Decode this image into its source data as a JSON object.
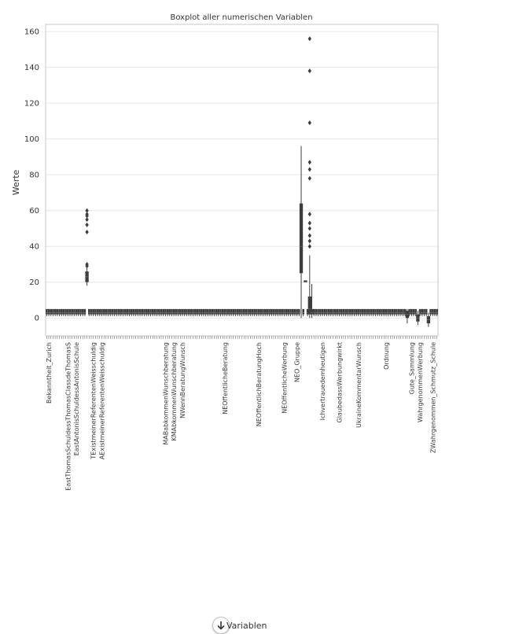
{
  "chart_data": {
    "type": "boxplot",
    "title": "Boxplot aller numerischen Variablen",
    "ylabel": "Werte",
    "xlabel": "Variablen",
    "ylim": [
      -10,
      164
    ],
    "yticks": [
      0,
      20,
      40,
      60,
      80,
      100,
      120,
      140,
      160
    ],
    "grid": true,
    "box_color": "#3d3d3d",
    "n_variables": 185,
    "typical_distribution": {
      "q1": 2,
      "median": 3,
      "q3": 5,
      "whisker_low": 1,
      "whisker_high": 5
    },
    "series": [
      {
        "index": 19,
        "q1": 20,
        "median": 23,
        "q3": 26,
        "whisker_low": 18,
        "whisker_high": 29,
        "outliers": [
          29,
          30,
          48,
          52,
          55,
          57,
          58,
          60
        ]
      },
      {
        "index": 120,
        "q1": 25,
        "median": 40,
        "q3": 64,
        "whisker_low": 0,
        "whisker_high": 96,
        "outliers": []
      },
      {
        "index": 122,
        "q1": 20,
        "median": 20,
        "q3": 21,
        "whisker_low": 20,
        "whisker_high": 21,
        "outliers": []
      },
      {
        "index": 124,
        "q1": 2,
        "median": 5,
        "q3": 12,
        "whisker_low": 0,
        "whisker_high": 35,
        "outliers": [
          40,
          43,
          46,
          50,
          53,
          58,
          78,
          83,
          87,
          109,
          138,
          156
        ]
      },
      {
        "index": 125,
        "q1": 2,
        "median": 3,
        "q3": 5,
        "whisker_low": 0,
        "whisker_high": 19,
        "outliers": []
      },
      {
        "index": 170,
        "q1": 0,
        "median": 2,
        "q3": 4,
        "whisker_low": -3,
        "whisker_high": 5,
        "outliers": []
      },
      {
        "index": 175,
        "q1": -2,
        "median": 0,
        "q3": 2,
        "whisker_low": -4,
        "whisker_high": 4,
        "outliers": []
      },
      {
        "index": 180,
        "q1": -3,
        "median": -1,
        "q3": 1,
        "whisker_low": -5,
        "whisker_high": 3,
        "outliers": []
      }
    ],
    "visible_tick_labels": [
      {
        "index": 1,
        "text": "Bekanntheit_Zurich"
      },
      {
        "index": 10,
        "text": "EastThomasSchuldessThomasClassdeThomasS"
      },
      {
        "index": 14,
        "text": "EastAntonisSchuldessAntonisSchule"
      },
      {
        "index": 22,
        "text": "TExistmeinerReferentenWeisschuldig"
      },
      {
        "index": 26,
        "text": "AExistmeinerReferentenWeisschuldig"
      },
      {
        "index": 56,
        "text": "MABabkommenWunschberatung"
      },
      {
        "index": 60,
        "text": "KMAbkommenWunschberatung"
      },
      {
        "index": 64,
        "text": "NWennBeratungWunsch"
      },
      {
        "index": 84,
        "text": "NEOffentlicheBeratung"
      },
      {
        "index": 100,
        "text": "NEOffentlichBeratungHoch"
      },
      {
        "index": 112,
        "text": "NEOffentlicheWerbung"
      },
      {
        "index": 118,
        "text": "NEO_Gruppe"
      },
      {
        "index": 130,
        "text": "Ichvertrauedemheutigen"
      },
      {
        "index": 138,
        "text": "GlaubedassWerbungwirkt"
      },
      {
        "index": 147,
        "text": "UkraineKommentarWunsch"
      },
      {
        "index": 160,
        "text": "Ordnung"
      },
      {
        "index": 172,
        "text": "Gute_Sammlung"
      },
      {
        "index": 176,
        "text": "WahrgenommenWerbung"
      },
      {
        "index": 182,
        "text": "ZWahrgenommen_Schmutz_Schule"
      }
    ]
  }
}
